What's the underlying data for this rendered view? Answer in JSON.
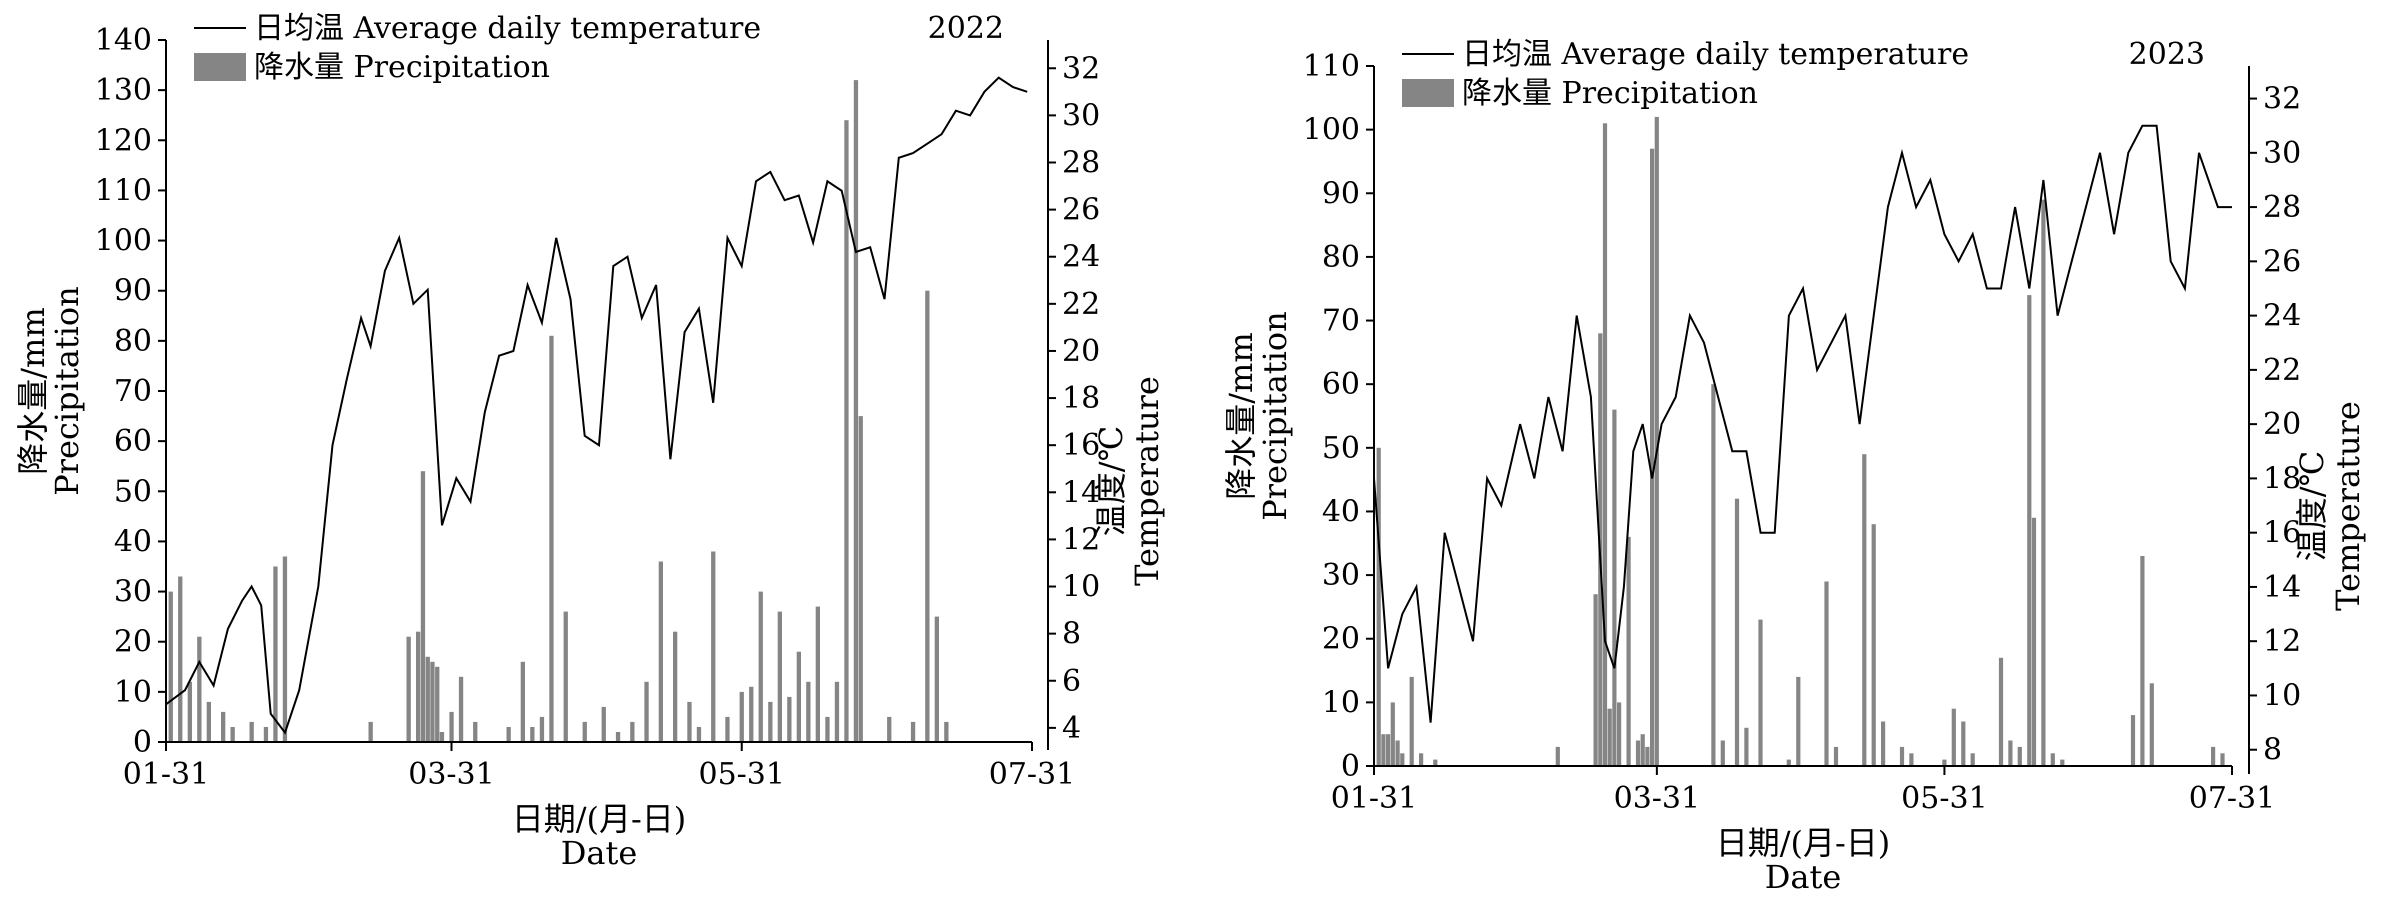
{
  "chart_data": [
    {
      "type": "bar+line",
      "year_label": "2022",
      "xlabel": [
        "日期/(月-日)",
        "Date"
      ],
      "ylabel_left": [
        "降水量/mm",
        "Precipitation"
      ],
      "ylabel_right": [
        "温度/℃",
        "Temperature"
      ],
      "legend": {
        "line": "日均温 Average daily temperature",
        "bar": "降水量 Precipitation",
        "placement": "top-left"
      },
      "x_ticks": [
        "01-31",
        "03-31",
        "05-31",
        "07-31"
      ],
      "ylim_left": [
        0,
        140
      ],
      "y_ticks_left": [
        0,
        10,
        20,
        30,
        40,
        50,
        60,
        70,
        80,
        90,
        100,
        110,
        120,
        130,
        140
      ],
      "ylim_right": [
        3.4,
        33.2
      ],
      "y_ticks_right": [
        4,
        6,
        8,
        10,
        12,
        14,
        16,
        18,
        20,
        22,
        24,
        26,
        28,
        30,
        32
      ],
      "grid": false,
      "temperature_series": {
        "name": "日均温 Average daily temperature",
        "x": [
          "01-31",
          "02-04",
          "02-07",
          "02-10",
          "02-13",
          "02-16",
          "02-18",
          "02-20",
          "02-22",
          "02-25",
          "02-28",
          "03-03",
          "03-06",
          "03-09",
          "03-12",
          "03-14",
          "03-17",
          "03-20",
          "03-23",
          "03-26",
          "03-29",
          "04-01",
          "04-04",
          "04-07",
          "04-10",
          "04-13",
          "04-16",
          "04-19",
          "04-22",
          "04-25",
          "04-28",
          "05-01",
          "05-04",
          "05-07",
          "05-10",
          "05-13",
          "05-16",
          "05-19",
          "05-22",
          "05-25",
          "05-28",
          "05-31",
          "06-03",
          "06-06",
          "06-09",
          "06-12",
          "06-15",
          "06-18",
          "06-21",
          "06-24",
          "06-27",
          "06-30",
          "07-03",
          "07-06",
          "07-09",
          "07-12",
          "07-15",
          "07-18",
          "07-21",
          "07-24",
          "07-27",
          "07-30"
        ],
        "values": [
          5.0,
          5.6,
          6.8,
          5.8,
          8.2,
          9.4,
          10.0,
          9.2,
          4.6,
          3.8,
          5.6,
          10.0,
          16.0,
          18.8,
          21.4,
          20.2,
          23.4,
          24.8,
          22.0,
          22.6,
          12.6,
          14.6,
          13.6,
          17.4,
          19.8,
          20.0,
          22.8,
          21.2,
          24.8,
          22.2,
          16.4,
          16.0,
          23.6,
          24.0,
          21.4,
          22.8,
          15.4,
          20.8,
          21.8,
          17.8,
          24.8,
          23.6,
          27.2,
          27.6,
          26.4,
          26.6,
          24.6,
          27.2,
          26.8,
          24.2,
          24.4,
          22.2,
          28.2,
          28.4,
          28.8,
          29.2,
          30.2,
          30.0,
          31.0,
          31.6,
          31.2,
          31.0
        ]
      },
      "precipitation_series": {
        "name": "降水量 Precipitation",
        "x": [
          "02-01",
          "02-03",
          "02-05",
          "02-07",
          "02-09",
          "02-12",
          "02-14",
          "02-18",
          "02-21",
          "02-23",
          "02-25",
          "03-14",
          "03-22",
          "03-24",
          "03-25",
          "03-26",
          "03-27",
          "03-28",
          "03-29",
          "03-31",
          "04-02",
          "04-05",
          "04-12",
          "04-15",
          "04-17",
          "04-19",
          "04-21",
          "04-24",
          "04-28",
          "05-02",
          "05-05",
          "05-08",
          "05-11",
          "05-14",
          "05-17",
          "05-20",
          "05-22",
          "05-25",
          "05-28",
          "05-31",
          "06-02",
          "06-04",
          "06-06",
          "06-08",
          "06-10",
          "06-12",
          "06-14",
          "06-16",
          "06-18",
          "06-20",
          "06-22",
          "06-24",
          "06-25",
          "06-26",
          "06-28",
          "07-01",
          "07-06",
          "07-09",
          "07-11",
          "07-13"
        ],
        "values": [
          30,
          33,
          12,
          21,
          8,
          6,
          3,
          4,
          3,
          35,
          37,
          4,
          21,
          22,
          54,
          17,
          16,
          15,
          2,
          6,
          13,
          4,
          3,
          16,
          3,
          5,
          81,
          26,
          4,
          7,
          2,
          4,
          12,
          36,
          22,
          8,
          3,
          38,
          5,
          10,
          11,
          30,
          8,
          26,
          9,
          18,
          12,
          27,
          5,
          12,
          124,
          132,
          65,
          0,
          0,
          5,
          4,
          90,
          25,
          4
        ]
      }
    },
    {
      "type": "bar+line",
      "year_label": "2023",
      "xlabel": [
        "日期/(月-日)",
        "Date"
      ],
      "ylabel_left": [
        "降水量/mm",
        "Precipitation"
      ],
      "ylabel_right": [
        "温度/℃",
        "Temperature"
      ],
      "legend": {
        "line": "日均温 Average daily temperature",
        "bar": "降水量 Precipitation",
        "placement": "top-left"
      },
      "x_ticks": [
        "01-31",
        "03-31",
        "05-31",
        "07-31"
      ],
      "ylim_left": [
        0,
        110
      ],
      "y_ticks_left": [
        0,
        10,
        20,
        30,
        40,
        50,
        60,
        70,
        80,
        90,
        100,
        110
      ],
      "ylim_right": [
        7.4,
        33.2
      ],
      "y_ticks_right": [
        8,
        10,
        12,
        14,
        16,
        18,
        20,
        22,
        24,
        26,
        28,
        30,
        32
      ],
      "grid": false,
      "temperature_series": {
        "name": "日均温 Average daily temperature",
        "x": [
          "01-31",
          "02-03",
          "02-06",
          "02-09",
          "02-12",
          "02-15",
          "02-18",
          "02-21",
          "02-24",
          "02-27",
          "03-02",
          "03-05",
          "03-08",
          "03-11",
          "03-14",
          "03-17",
          "03-20",
          "03-22",
          "03-24",
          "03-26",
          "03-28",
          "03-30",
          "04-01",
          "04-04",
          "04-07",
          "04-10",
          "04-13",
          "04-16",
          "04-19",
          "04-22",
          "04-25",
          "04-28",
          "05-01",
          "05-04",
          "05-07",
          "05-10",
          "05-13",
          "05-16",
          "05-19",
          "05-22",
          "05-25",
          "05-28",
          "05-31",
          "06-03",
          "06-06",
          "06-09",
          "06-12",
          "06-15",
          "06-18",
          "06-21",
          "06-24",
          "06-27",
          "06-30",
          "07-03",
          "07-06",
          "07-09",
          "07-12",
          "07-15",
          "07-18",
          "07-21",
          "07-24",
          "07-28",
          "07-31"
        ],
        "values": [
          18,
          11,
          13,
          14,
          9,
          16,
          14,
          12,
          18,
          17,
          20,
          18,
          21,
          19,
          24,
          21,
          12,
          11,
          14,
          19,
          20,
          18,
          20,
          21,
          24,
          23,
          21,
          19,
          19,
          16,
          16,
          24,
          25,
          22,
          23,
          24,
          20,
          24,
          28,
          30,
          28,
          29,
          27,
          26,
          27,
          25,
          25,
          28,
          25,
          29,
          24,
          26,
          28,
          30,
          27,
          30,
          31,
          31,
          26,
          25,
          30,
          28,
          28
        ]
      },
      "precipitation_series": {
        "name": "降水量 Precipitation",
        "x": [
          "02-01",
          "02-02",
          "02-03",
          "02-04",
          "02-05",
          "02-06",
          "02-08",
          "02-10",
          "02-13",
          "03-10",
          "03-18",
          "03-19",
          "03-20",
          "03-21",
          "03-22",
          "03-23",
          "03-25",
          "03-27",
          "03-28",
          "03-29",
          "03-30",
          "03-31",
          "04-12",
          "04-14",
          "04-17",
          "04-19",
          "04-22",
          "04-28",
          "04-30",
          "05-06",
          "05-08",
          "05-14",
          "05-16",
          "05-18",
          "05-22",
          "05-24",
          "05-31",
          "06-02",
          "06-04",
          "06-06",
          "06-12",
          "06-14",
          "06-16",
          "06-18",
          "06-19",
          "06-21",
          "06-23",
          "06-25",
          "07-10",
          "07-12",
          "07-14",
          "07-27",
          "07-29"
        ],
        "values": [
          50,
          5,
          5,
          10,
          4,
          2,
          14,
          2,
          1,
          3,
          27,
          68,
          101,
          9,
          56,
          10,
          36,
          4,
          5,
          3,
          97,
          102,
          60,
          4,
          42,
          6,
          23,
          1,
          14,
          29,
          3,
          49,
          38,
          7,
          3,
          2,
          1,
          9,
          7,
          2,
          17,
          4,
          3,
          74,
          39,
          89,
          2,
          1,
          8,
          33,
          13,
          3,
          2
        ]
      }
    }
  ]
}
